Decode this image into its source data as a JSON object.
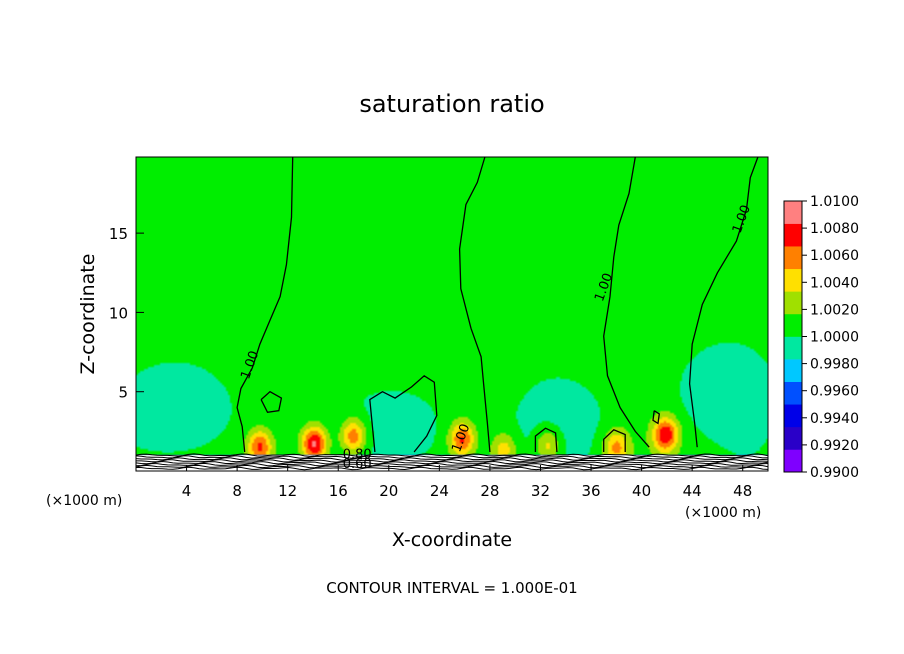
{
  "chart_data": {
    "type": "heatmap",
    "title": "saturation ratio",
    "xlabel": "X-coordinate",
    "ylabel": "Z-coordinate",
    "x_unit_left": "(×1000 m)",
    "x_unit_right": "(×1000 m)",
    "footer": "CONTOUR INTERVAL = 1.000E-01",
    "xlim": [
      0,
      50
    ],
    "ylim": [
      0,
      19.8
    ],
    "x_ticks": [
      4,
      8,
      12,
      16,
      20,
      24,
      28,
      32,
      36,
      40,
      44,
      48
    ],
    "y_ticks": [
      5,
      10,
      15
    ],
    "colorbar": {
      "levels": [
        "0.9900",
        "0.9920",
        "0.9940",
        "0.9960",
        "0.9980",
        "1.0000",
        "1.0020",
        "1.0040",
        "1.0060",
        "1.0080",
        "1.0100"
      ],
      "colors": [
        "#7f00ff",
        "#2a00c8",
        "#0000e8",
        "#0050ff",
        "#00c8ff",
        "#00e8a0",
        "#00ee00",
        "#a0e000",
        "#ffe000",
        "#ff8000",
        "#ff0000",
        "#ff8080"
      ]
    },
    "contour_labels": [
      {
        "text": "1.00",
        "x": 9.3,
        "y": 6.6
      },
      {
        "text": "1.00",
        "x": 26.0,
        "y": 2.0
      },
      {
        "text": "1.00",
        "x": 37.3,
        "y": 11.5
      },
      {
        "text": "1.00",
        "x": 48.2,
        "y": 15.8
      },
      {
        "text": "0.80",
        "x": 17.5,
        "y": 0.8
      },
      {
        "text": "0.60",
        "x": 17.5,
        "y": 0.2
      }
    ],
    "hot_spots": [
      {
        "x": 9.8,
        "z": 1.5,
        "amp": 0.0065
      },
      {
        "x": 14.1,
        "z": 1.7,
        "amp": 0.0085
      },
      {
        "x": 17.2,
        "z": 2.2,
        "amp": 0.006
      },
      {
        "x": 25.8,
        "z": 2.0,
        "amp": 0.0065
      },
      {
        "x": 29.1,
        "z": 1.3,
        "amp": 0.004
      },
      {
        "x": 32.6,
        "z": 1.6,
        "amp": 0.004
      },
      {
        "x": 38.0,
        "z": 1.5,
        "amp": 0.005
      },
      {
        "x": 41.9,
        "z": 2.3,
        "amp": 0.0075
      }
    ],
    "cool_spots": [
      {
        "x": 3.5,
        "z": 3.8,
        "amp": -0.0022
      },
      {
        "x": 21.0,
        "z": 2.5,
        "amp": -0.0018
      },
      {
        "x": 34.5,
        "z": 3.0,
        "amp": -0.0012
      },
      {
        "x": 46.0,
        "z": 5.0,
        "amp": -0.0015
      }
    ]
  }
}
